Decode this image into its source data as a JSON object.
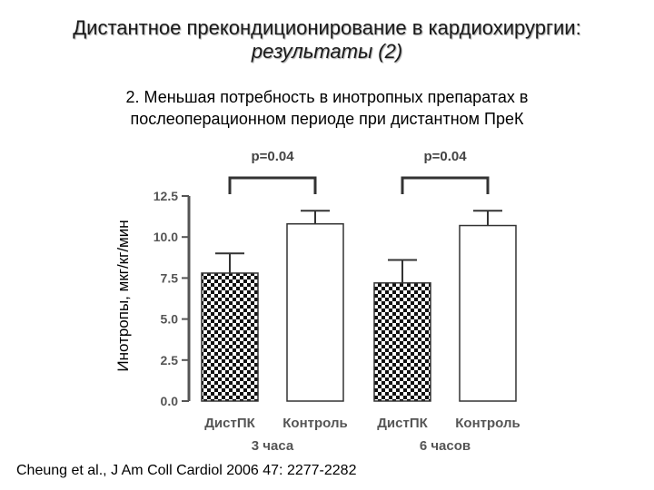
{
  "slide": {
    "title_line1": "Дистантное прекондиционирование в кардиохирургии:",
    "title_line2": "результаты (2)",
    "subtitle_line1": "2. Меньшая потребность в инотропных препаратах в",
    "subtitle_line2": "послеоперационном периоде при дистантном ПреК",
    "citation": "Cheung et al., J Am Coll Cardiol 2006 47: 2277-2282"
  },
  "chart_data": {
    "type": "bar",
    "ylabel": "Инотропы, мкг/кг/мин",
    "ylim": [
      0,
      12.5
    ],
    "yticks": [
      "0.0",
      "2.5",
      "5.0",
      "7.5",
      "10.0",
      "12.5"
    ],
    "groups": [
      "3 часа",
      "6 часов"
    ],
    "categories": [
      "ДистПК",
      "Контроль",
      "ДистПК",
      "Контроль"
    ],
    "values": [
      7.8,
      10.8,
      7.2,
      10.7
    ],
    "errors": [
      1.2,
      0.8,
      1.4,
      0.9
    ],
    "fills": [
      "checker",
      "white",
      "checker",
      "white"
    ],
    "significance": [
      {
        "label": "p=0.04",
        "between": [
          0,
          1
        ]
      },
      {
        "label": "p=0.04",
        "between": [
          2,
          3
        ]
      }
    ],
    "grid": false
  }
}
